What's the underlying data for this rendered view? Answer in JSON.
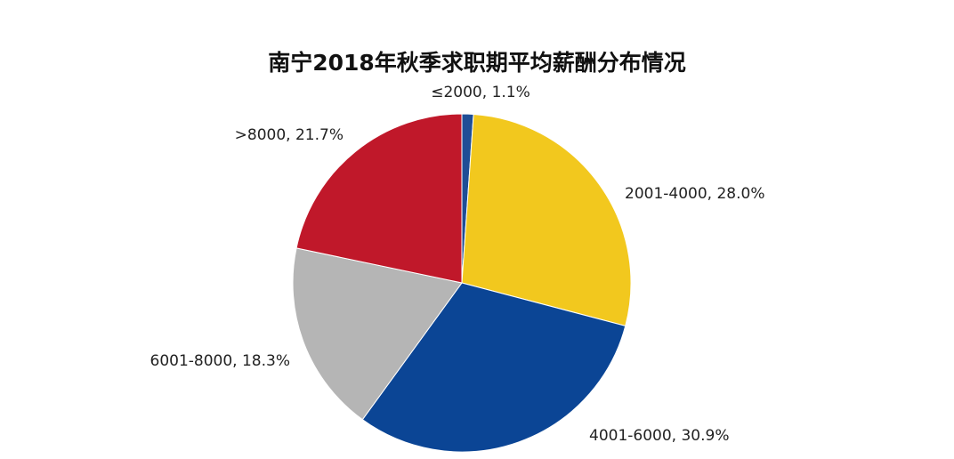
{
  "chart_data": {
    "type": "pie",
    "title": "南宁2018年秋季求职期平均薪酬分布情况",
    "categories": [
      "≤2000",
      "2001-4000",
      "4001-6000",
      "6001-8000",
      ">8000"
    ],
    "values": [
      1.1,
      28.0,
      30.9,
      18.3,
      21.7
    ],
    "value_labels": [
      "1.1%",
      "28.0%",
      "30.9%",
      "18.3%",
      "21.7%"
    ],
    "label_separator": ", ",
    "colors": [
      "#1f4e96",
      "#f2c81e",
      "#0b4595",
      "#b5b5b5",
      "#c0182a"
    ]
  }
}
